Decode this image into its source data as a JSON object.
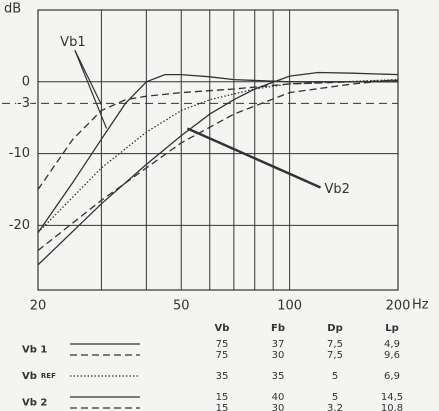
{
  "chart_data": {
    "type": "line",
    "y_label": "dB",
    "x_label": "Hz",
    "log_x": true,
    "xlim": [
      20,
      200
    ],
    "xticks": [
      20,
      50,
      100,
      200
    ],
    "x_grid": [
      30,
      40,
      60,
      70,
      80,
      90
    ],
    "ylim": [
      -29,
      10
    ],
    "yticks": [
      0,
      -3,
      -10,
      -20
    ],
    "dashed_yticks": [
      -3
    ],
    "color": "#333333",
    "series": [
      {
        "dash": "solid",
        "x": [
          20,
          25,
          30,
          35,
          40,
          45,
          50,
          60,
          70,
          100,
          200
        ],
        "values": [
          -21,
          -14,
          -8,
          -3,
          0,
          1,
          1,
          0.7,
          0.3,
          0,
          0
        ]
      },
      {
        "dash": "dashed",
        "x": [
          20,
          25,
          30,
          35,
          40,
          50,
          70,
          100,
          200
        ],
        "values": [
          -15,
          -8,
          -4,
          -2.5,
          -2,
          -1.5,
          -1,
          -0.3,
          0.2
        ]
      },
      {
        "dash": "dotted",
        "x": [
          20,
          30,
          40,
          50,
          60,
          80,
          100,
          200
        ],
        "values": [
          -21,
          -12,
          -7,
          -4,
          -2.5,
          -1,
          -0.3,
          0.3
        ]
      },
      {
        "dash": "solid",
        "x": [
          20,
          30,
          40,
          50,
          60,
          70,
          80,
          100,
          120,
          150,
          200
        ],
        "values": [
          -25.5,
          -17,
          -11.5,
          -7.5,
          -4.5,
          -2.5,
          -1,
          0.8,
          1.3,
          1.2,
          1
        ]
      },
      {
        "dash": "dashed",
        "x": [
          20,
          30,
          40,
          50,
          70,
          100,
          150,
          200
        ],
        "values": [
          -23.5,
          -16.5,
          -12,
          -8.5,
          -4.5,
          -1.5,
          -0.3,
          0.3
        ]
      }
    ],
    "annotations": [
      {
        "text": "Vb1",
        "x": 25,
        "y": 5.5
      },
      {
        "text": "Vb2",
        "x": 125,
        "y": -15
      }
    ]
  },
  "table": {
    "columns": [
      "Vb",
      "Fb",
      "Dp",
      "Lp"
    ],
    "groups": [
      {
        "label": "Vb 1",
        "rows": [
          {
            "dash": "solid",
            "cells": [
              "75",
              "37",
              "7,5",
              "4,9"
            ]
          },
          {
            "dash": "dashed",
            "cells": [
              "75",
              "30",
              "7,5",
              "9,6"
            ]
          }
        ]
      },
      {
        "label": "Vb",
        "sub": "REF",
        "rows": [
          {
            "dash": "dotted",
            "cells": [
              "35",
              "35",
              "5",
              "6,9"
            ]
          }
        ]
      },
      {
        "label": "Vb 2",
        "rows": [
          {
            "dash": "solid",
            "cells": [
              "15",
              "40",
              "5",
              "14,5"
            ]
          },
          {
            "dash": "dashed",
            "cells": [
              "15",
              "30",
              "3,2",
              "10,8"
            ]
          }
        ]
      }
    ]
  }
}
